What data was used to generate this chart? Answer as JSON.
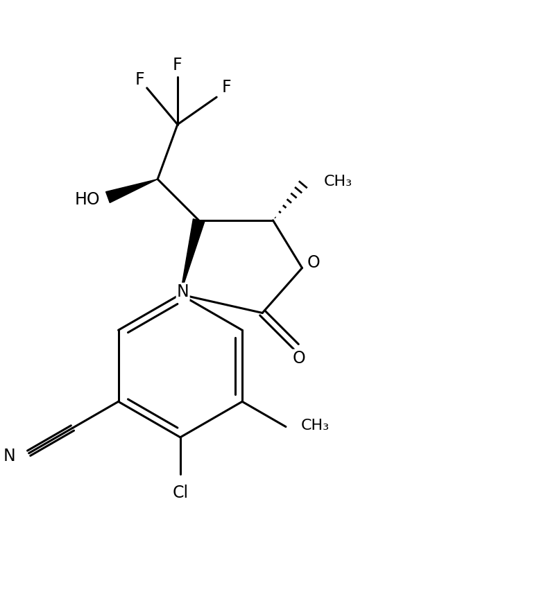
{
  "background_color": "#ffffff",
  "line_color": "#000000",
  "line_width": 2.2,
  "font_size": 17,
  "figsize": [
    7.87,
    8.8
  ],
  "dpi": 100,
  "xlim": [
    0,
    10
  ],
  "ylim": [
    0,
    11
  ]
}
